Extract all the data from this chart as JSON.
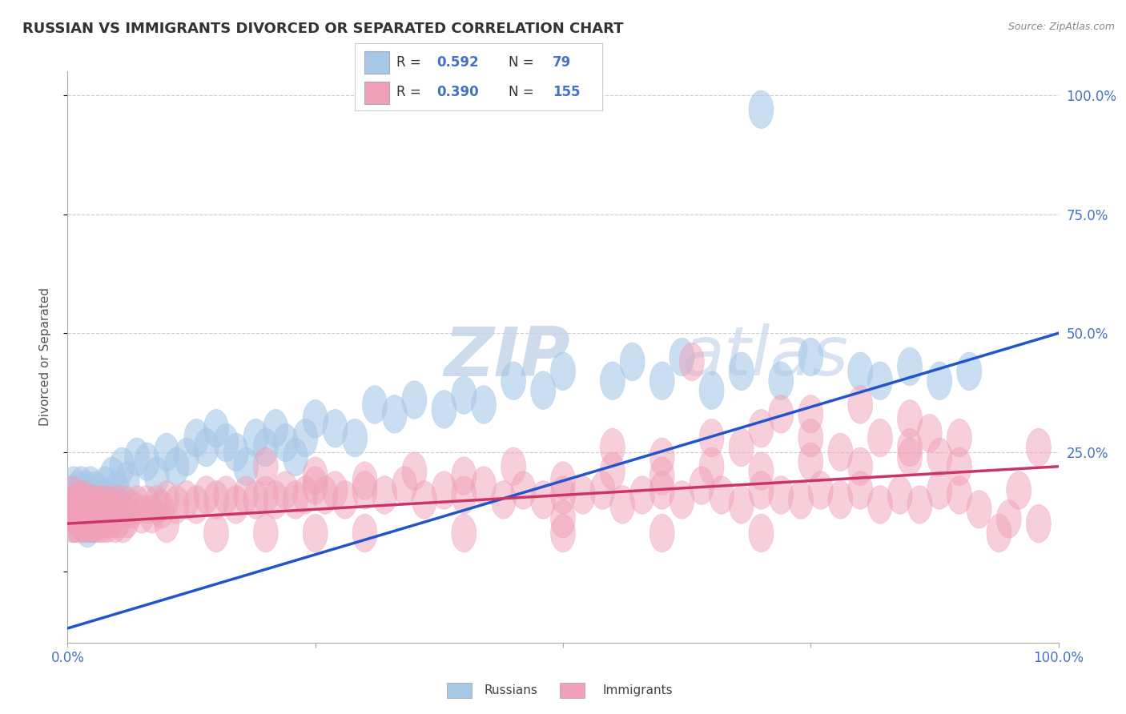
{
  "title": "RUSSIAN VS IMMIGRANTS DIVORCED OR SEPARATED CORRELATION CHART",
  "source": "Source: ZipAtlas.com",
  "ylabel": "Divorced or Separated",
  "russian_R": 0.592,
  "russian_N": 79,
  "immigrant_R": 0.39,
  "immigrant_N": 155,
  "russian_color": "#a8c8e8",
  "immigrant_color": "#f0a0b8",
  "russian_line_color": "#2255cc",
  "immigrant_line_color": "#cc3366",
  "watermark_zip": "ZIP",
  "watermark_atlas": "atlas",
  "background_color": "#ffffff",
  "grid_color": "#cccccc",
  "tick_color": "#4472c4",
  "title_color": "#333333",
  "source_color": "#888888",
  "ylabel_color": "#555555",
  "legend_text_color": "#333333",
  "legend_rn_color": "#4472c4",
  "xlim": [
    0,
    100
  ],
  "ylim": [
    0,
    100
  ],
  "yticks": [
    0,
    25,
    50,
    75,
    100
  ],
  "ytick_labels": [
    "",
    "25.0%",
    "50.0%",
    "75.0%",
    "100.0%"
  ],
  "xtick_labels_show": [
    "0.0%",
    "100.0%"
  ],
  "blue_line_x": [
    0,
    100
  ],
  "blue_line_y": [
    -12,
    50
  ],
  "pink_line_x": [
    0,
    100
  ],
  "pink_line_y": [
    10,
    22
  ],
  "russian_scatter": [
    [
      0.3,
      16
    ],
    [
      0.4,
      14
    ],
    [
      0.5,
      12
    ],
    [
      0.6,
      18
    ],
    [
      0.7,
      10
    ],
    [
      0.8,
      15
    ],
    [
      0.9,
      13
    ],
    [
      1.0,
      17
    ],
    [
      1.1,
      11
    ],
    [
      1.2,
      16
    ],
    [
      1.3,
      12
    ],
    [
      1.4,
      18
    ],
    [
      1.5,
      14
    ],
    [
      1.6,
      10
    ],
    [
      1.7,
      15
    ],
    [
      1.8,
      13
    ],
    [
      1.9,
      17
    ],
    [
      2.0,
      9
    ],
    [
      2.1,
      16
    ],
    [
      2.2,
      12
    ],
    [
      2.3,
      18
    ],
    [
      2.4,
      14
    ],
    [
      2.5,
      10
    ],
    [
      2.6,
      15
    ],
    [
      2.7,
      13
    ],
    [
      2.8,
      11
    ],
    [
      2.9,
      17
    ],
    [
      3.0,
      14
    ],
    [
      3.2,
      16
    ],
    [
      3.5,
      12
    ],
    [
      3.8,
      18
    ],
    [
      4.0,
      15
    ],
    [
      4.5,
      20
    ],
    [
      5.0,
      17
    ],
    [
      5.5,
      22
    ],
    [
      6.0,
      19
    ],
    [
      7.0,
      24
    ],
    [
      8.0,
      23
    ],
    [
      9.0,
      20
    ],
    [
      10.0,
      25
    ],
    [
      11.0,
      22
    ],
    [
      12.0,
      24
    ],
    [
      13.0,
      28
    ],
    [
      14.0,
      26
    ],
    [
      15.0,
      30
    ],
    [
      16.0,
      27
    ],
    [
      17.0,
      25
    ],
    [
      18.0,
      22
    ],
    [
      19.0,
      28
    ],
    [
      20.0,
      26
    ],
    [
      21.0,
      30
    ],
    [
      22.0,
      27
    ],
    [
      23.0,
      24
    ],
    [
      24.0,
      28
    ],
    [
      25.0,
      32
    ],
    [
      27.0,
      30
    ],
    [
      29.0,
      28
    ],
    [
      31.0,
      35
    ],
    [
      33.0,
      33
    ],
    [
      35.0,
      36
    ],
    [
      38.0,
      34
    ],
    [
      40.0,
      37
    ],
    [
      42.0,
      35
    ],
    [
      45.0,
      40
    ],
    [
      48.0,
      38
    ],
    [
      50.0,
      42
    ],
    [
      55.0,
      40
    ],
    [
      57.0,
      44
    ],
    [
      60.0,
      40
    ],
    [
      62.0,
      45
    ],
    [
      65.0,
      38
    ],
    [
      68.0,
      42
    ],
    [
      72.0,
      40
    ],
    [
      75.0,
      45
    ],
    [
      80.0,
      42
    ],
    [
      82.0,
      40
    ],
    [
      85.0,
      43
    ],
    [
      88.0,
      40
    ],
    [
      91.0,
      42
    ],
    [
      70.0,
      97
    ]
  ],
  "immigrant_scatter": [
    [
      0.2,
      12
    ],
    [
      0.4,
      14
    ],
    [
      0.5,
      10
    ],
    [
      0.6,
      16
    ],
    [
      0.7,
      12
    ],
    [
      0.8,
      14
    ],
    [
      0.9,
      10
    ],
    [
      1.0,
      13
    ],
    [
      1.1,
      11
    ],
    [
      1.2,
      15
    ],
    [
      1.3,
      12
    ],
    [
      1.4,
      14
    ],
    [
      1.5,
      10
    ],
    [
      1.6,
      13
    ],
    [
      1.7,
      11
    ],
    [
      1.8,
      15
    ],
    [
      1.9,
      12
    ],
    [
      2.0,
      10
    ],
    [
      2.1,
      14
    ],
    [
      2.2,
      11
    ],
    [
      2.3,
      13
    ],
    [
      2.4,
      10
    ],
    [
      2.5,
      14
    ],
    [
      2.6,
      12
    ],
    [
      2.7,
      10
    ],
    [
      2.8,
      14
    ],
    [
      2.9,
      12
    ],
    [
      3.0,
      11
    ],
    [
      3.1,
      13
    ],
    [
      3.2,
      10
    ],
    [
      3.3,
      14
    ],
    [
      3.4,
      11
    ],
    [
      3.5,
      13
    ],
    [
      3.6,
      10
    ],
    [
      3.7,
      14
    ],
    [
      3.8,
      11
    ],
    [
      3.9,
      13
    ],
    [
      4.0,
      10
    ],
    [
      4.2,
      14
    ],
    [
      4.4,
      11
    ],
    [
      4.6,
      13
    ],
    [
      4.8,
      10
    ],
    [
      5.0,
      14
    ],
    [
      5.2,
      11
    ],
    [
      5.4,
      13
    ],
    [
      5.6,
      10
    ],
    [
      5.8,
      14
    ],
    [
      6.0,
      11
    ],
    [
      6.5,
      13
    ],
    [
      7.0,
      14
    ],
    [
      7.5,
      12
    ],
    [
      8.0,
      14
    ],
    [
      8.5,
      12
    ],
    [
      9.0,
      14
    ],
    [
      9.5,
      13
    ],
    [
      10.0,
      15
    ],
    [
      11.0,
      14
    ],
    [
      12.0,
      15
    ],
    [
      13.0,
      14
    ],
    [
      14.0,
      16
    ],
    [
      15.0,
      15
    ],
    [
      16.0,
      16
    ],
    [
      17.0,
      14
    ],
    [
      18.0,
      16
    ],
    [
      19.0,
      15
    ],
    [
      20.0,
      16
    ],
    [
      21.0,
      15
    ],
    [
      22.0,
      17
    ],
    [
      23.0,
      15
    ],
    [
      24.0,
      16
    ],
    [
      25.0,
      18
    ],
    [
      26.0,
      16
    ],
    [
      27.0,
      17
    ],
    [
      28.0,
      15
    ],
    [
      30.0,
      17
    ],
    [
      32.0,
      16
    ],
    [
      34.0,
      18
    ],
    [
      36.0,
      15
    ],
    [
      38.0,
      17
    ],
    [
      40.0,
      16
    ],
    [
      42.0,
      18
    ],
    [
      44.0,
      15
    ],
    [
      46.0,
      17
    ],
    [
      48.0,
      15
    ],
    [
      50.0,
      11
    ],
    [
      52.0,
      16
    ],
    [
      54.0,
      17
    ],
    [
      56.0,
      14
    ],
    [
      58.0,
      16
    ],
    [
      60.0,
      17
    ],
    [
      62.0,
      15
    ],
    [
      64.0,
      18
    ],
    [
      66.0,
      16
    ],
    [
      68.0,
      14
    ],
    [
      70.0,
      17
    ],
    [
      72.0,
      16
    ],
    [
      74.0,
      15
    ],
    [
      76.0,
      17
    ],
    [
      78.0,
      15
    ],
    [
      80.0,
      17
    ],
    [
      82.0,
      14
    ],
    [
      84.0,
      16
    ],
    [
      86.0,
      14
    ],
    [
      88.0,
      17
    ],
    [
      90.0,
      16
    ],
    [
      92.0,
      13
    ],
    [
      94.0,
      8
    ],
    [
      96.0,
      17
    ],
    [
      98.0,
      10
    ],
    [
      20.0,
      22
    ],
    [
      25.0,
      20
    ],
    [
      30.0,
      19
    ],
    [
      35.0,
      21
    ],
    [
      40.0,
      20
    ],
    [
      45.0,
      22
    ],
    [
      50.0,
      19
    ],
    [
      55.0,
      21
    ],
    [
      60.0,
      20
    ],
    [
      65.0,
      22
    ],
    [
      70.0,
      21
    ],
    [
      75.0,
      23
    ],
    [
      80.0,
      22
    ],
    [
      85.0,
      24
    ],
    [
      90.0,
      22
    ],
    [
      63.0,
      44
    ],
    [
      72.0,
      33
    ],
    [
      75.0,
      33
    ],
    [
      80.0,
      35
    ],
    [
      85.0,
      32
    ],
    [
      87.0,
      29
    ],
    [
      55.0,
      26
    ],
    [
      60.0,
      24
    ],
    [
      65.0,
      28
    ],
    [
      68.0,
      26
    ],
    [
      70.0,
      30
    ],
    [
      75.0,
      28
    ],
    [
      78.0,
      25
    ],
    [
      82.0,
      28
    ],
    [
      85.0,
      26
    ],
    [
      88.0,
      24
    ],
    [
      90.0,
      28
    ],
    [
      95.0,
      11
    ],
    [
      98.0,
      26
    ],
    [
      50.0,
      16
    ],
    [
      10.0,
      10
    ],
    [
      15.0,
      8
    ],
    [
      20.0,
      8
    ],
    [
      25.0,
      8
    ],
    [
      30.0,
      8
    ],
    [
      40.0,
      8
    ],
    [
      50.0,
      8
    ],
    [
      60.0,
      8
    ],
    [
      70.0,
      8
    ]
  ]
}
